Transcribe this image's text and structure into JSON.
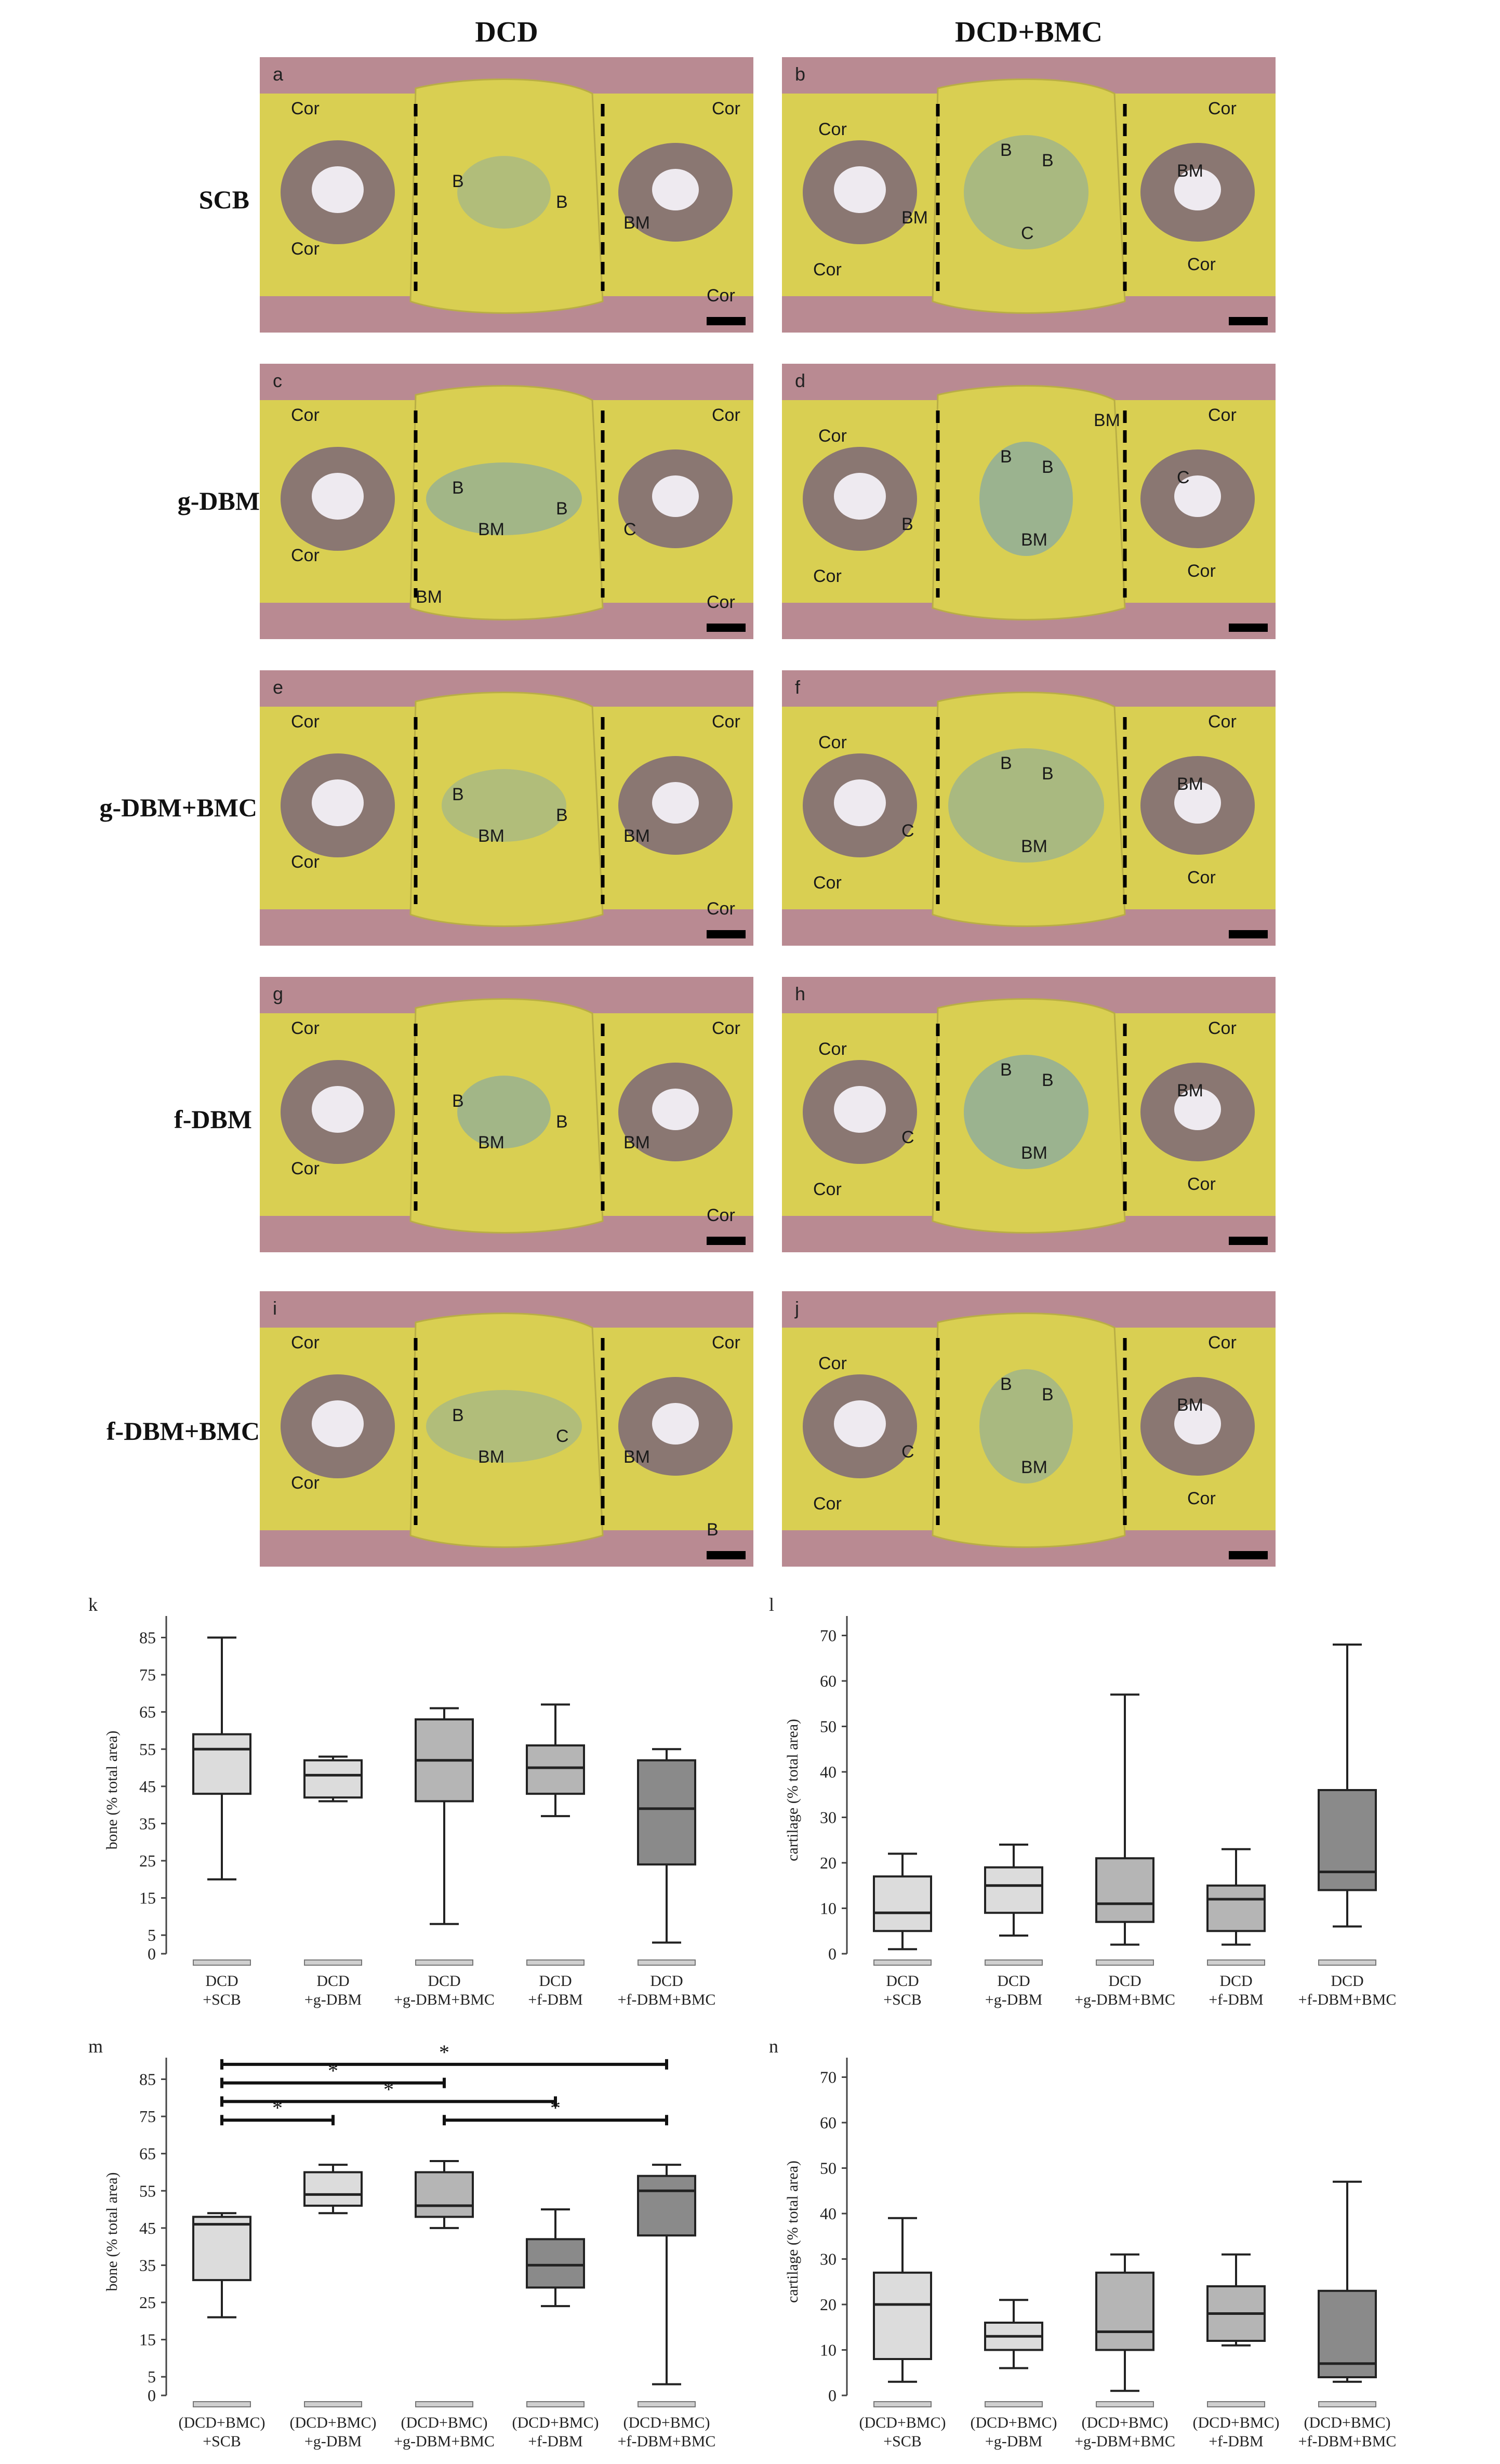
{
  "headers": {
    "columns": [
      "DCD",
      "DCD+BMC"
    ],
    "rows": [
      "SCB",
      "g-DBM",
      "g-DBM+BMC",
      "f-DBM",
      "f-DBM+BMC"
    ]
  },
  "histology_panels": [
    {
      "letter": "a",
      "labels": [
        "Cor",
        "Cor",
        "Cor",
        "Cor",
        "B",
        "B",
        "BM"
      ]
    },
    {
      "letter": "b",
      "labels": [
        "Cor",
        "Cor",
        "Cor",
        "Cor",
        "B",
        "B",
        "BM",
        "BM",
        "C"
      ]
    },
    {
      "letter": "c",
      "labels": [
        "Cor",
        "Cor",
        "Cor",
        "Cor",
        "B",
        "B",
        "C",
        "BM",
        "BM"
      ]
    },
    {
      "letter": "d",
      "labels": [
        "Cor",
        "Cor",
        "Cor",
        "Cor",
        "B",
        "B",
        "B",
        "C",
        "BM",
        "BM"
      ]
    },
    {
      "letter": "e",
      "labels": [
        "Cor",
        "Cor",
        "Cor",
        "Cor",
        "B",
        "B",
        "BM",
        "BM"
      ]
    },
    {
      "letter": "f",
      "labels": [
        "Cor",
        "Cor",
        "Cor",
        "Cor",
        "B",
        "B",
        "C",
        "BM",
        "BM"
      ]
    },
    {
      "letter": "g",
      "labels": [
        "Cor",
        "Cor",
        "Cor",
        "Cor",
        "B",
        "B",
        "BM",
        "BM"
      ]
    },
    {
      "letter": "h",
      "labels": [
        "Cor",
        "Cor",
        "Cor",
        "Cor",
        "B",
        "B",
        "C",
        "BM",
        "BM"
      ]
    },
    {
      "letter": "i",
      "labels": [
        "Cor",
        "Cor",
        "Cor",
        "B",
        "B",
        "C",
        "BM",
        "BM"
      ]
    },
    {
      "letter": "j",
      "labels": [
        "Cor",
        "Cor",
        "Cor",
        "Cor",
        "B",
        "B",
        "C",
        "BM",
        "BM"
      ]
    }
  ],
  "colors": {
    "tissue_yellow": "#d9cf52",
    "cartilage_teal": "#8fae9a",
    "marrow_purple": "#6f5a7e",
    "muscle_pink": "#b98a92",
    "box_light": "#dcdcdc",
    "box_mid": "#b5b5b5",
    "box_dark": "#8a8a8a"
  },
  "chart_data": [
    {
      "letter": "k",
      "type": "box",
      "ylabel": "bone (% total area)",
      "yticks": [
        0,
        5,
        15,
        25,
        35,
        45,
        55,
        65,
        75,
        85
      ],
      "ylim": [
        0,
        88
      ],
      "categories": [
        "DCD\n+SCB",
        "DCD\n+g-DBM",
        "DCD\n+g-DBM+BMC",
        "DCD\n+f-DBM",
        "DCD\n+f-DBM+BMC"
      ],
      "boxes": [
        {
          "min": 20,
          "q1": 43,
          "median": 55,
          "q3": 59,
          "max": 85,
          "color": "#dcdcdc"
        },
        {
          "min": 41,
          "q1": 42,
          "median": 48,
          "q3": 52,
          "max": 53,
          "color": "#dcdcdc"
        },
        {
          "min": 8,
          "q1": 41,
          "median": 52,
          "q3": 63,
          "max": 66,
          "color": "#b5b5b5"
        },
        {
          "min": 37,
          "q1": 43,
          "median": 50,
          "q3": 56,
          "max": 67,
          "color": "#b5b5b5"
        },
        {
          "min": 3,
          "q1": 24,
          "median": 39,
          "q3": 52,
          "max": 55,
          "color": "#8a8a8a"
        }
      ],
      "significance": []
    },
    {
      "letter": "l",
      "type": "box",
      "ylabel": "cartilage (% total area)",
      "yticks": [
        0,
        10,
        20,
        30,
        40,
        50,
        60,
        70
      ],
      "ylim": [
        0,
        72
      ],
      "categories": [
        "DCD\n+SCB",
        "DCD\n+g-DBM",
        "DCD\n+g-DBM+BMC",
        "DCD\n+f-DBM",
        "DCD\n+f-DBM+BMC"
      ],
      "boxes": [
        {
          "min": 1,
          "q1": 5,
          "median": 9,
          "q3": 17,
          "max": 22,
          "color": "#dcdcdc"
        },
        {
          "min": 4,
          "q1": 9,
          "median": 15,
          "q3": 19,
          "max": 24,
          "color": "#dcdcdc"
        },
        {
          "min": 2,
          "q1": 7,
          "median": 11,
          "q3": 21,
          "max": 57,
          "color": "#b5b5b5"
        },
        {
          "min": 2,
          "q1": 5,
          "median": 12,
          "q3": 15,
          "max": 23,
          "color": "#b5b5b5"
        },
        {
          "min": 6,
          "q1": 14,
          "median": 18,
          "q3": 36,
          "max": 68,
          "color": "#8a8a8a"
        }
      ],
      "significance": []
    },
    {
      "letter": "m",
      "type": "box",
      "ylabel": "bone (% total area)",
      "yticks": [
        0,
        5,
        15,
        25,
        35,
        45,
        55,
        65,
        75,
        85
      ],
      "ylim": [
        0,
        88
      ],
      "categories": [
        "(DCD+BMC)\n+SCB",
        "(DCD+BMC)\n+g-DBM",
        "(DCD+BMC)\n+g-DBM+BMC",
        "(DCD+BMC)\n+f-DBM",
        "(DCD+BMC)\n+f-DBM+BMC"
      ],
      "boxes": [
        {
          "min": 21,
          "q1": 31,
          "median": 46,
          "q3": 48,
          "max": 49,
          "color": "#dcdcdc"
        },
        {
          "min": 49,
          "q1": 51,
          "median": 54,
          "q3": 60,
          "max": 62,
          "color": "#dcdcdc"
        },
        {
          "min": 45,
          "q1": 48,
          "median": 51,
          "q3": 60,
          "max": 63,
          "color": "#b5b5b5"
        },
        {
          "min": 24,
          "q1": 29,
          "median": 35,
          "q3": 42,
          "max": 50,
          "color": "#8a8a8a"
        },
        {
          "min": 3,
          "q1": 43,
          "median": 55,
          "q3": 59,
          "max": 62,
          "color": "#8a8a8a"
        }
      ],
      "significance": [
        {
          "from": 0,
          "to": 4,
          "y": 89,
          "label": "*"
        },
        {
          "from": 0,
          "to": 2,
          "y": 84,
          "label": "*"
        },
        {
          "from": 0,
          "to": 3,
          "y": 79,
          "label": "*"
        },
        {
          "from": 0,
          "to": 1,
          "y": 74,
          "label": "*"
        },
        {
          "from": 2,
          "to": 4,
          "y": 74,
          "label": "*"
        },
        {
          "from": 3,
          "to": 3,
          "y": 74,
          "label": ""
        }
      ]
    },
    {
      "letter": "n",
      "type": "box",
      "ylabel": "cartilage (% total area)",
      "yticks": [
        0,
        10,
        20,
        30,
        40,
        50,
        60,
        70
      ],
      "ylim": [
        0,
        72
      ],
      "categories": [
        "(DCD+BMC)\n+SCB",
        "(DCD+BMC)\n+g-DBM",
        "(DCD+BMC)\n+g-DBM+BMC",
        "(DCD+BMC)\n+f-DBM",
        "(DCD+BMC)\n+f-DBM+BMC"
      ],
      "boxes": [
        {
          "min": 3,
          "q1": 8,
          "median": 20,
          "q3": 27,
          "max": 39,
          "color": "#dcdcdc"
        },
        {
          "min": 6,
          "q1": 10,
          "median": 13,
          "q3": 16,
          "max": 21,
          "color": "#dcdcdc"
        },
        {
          "min": 1,
          "q1": 10,
          "median": 14,
          "q3": 27,
          "max": 31,
          "color": "#b5b5b5"
        },
        {
          "min": 11,
          "q1": 12,
          "median": 18,
          "q3": 24,
          "max": 31,
          "color": "#b5b5b5"
        },
        {
          "min": 3,
          "q1": 4,
          "median": 7,
          "q3": 23,
          "max": 47,
          "color": "#8a8a8a"
        }
      ],
      "significance": []
    }
  ]
}
